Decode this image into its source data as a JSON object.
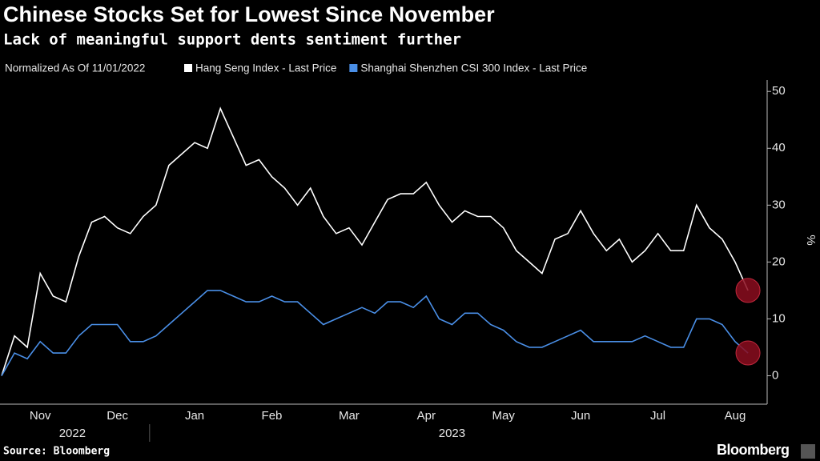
{
  "chart_data": {
    "type": "line",
    "title": "Chinese Stocks Set for Lowest Since November",
    "subtitle": "Lack of meaningful support dents sentiment further",
    "legend_note": "Normalized As Of 11/01/2022",
    "y_label": "%",
    "source": "Source: Bloomberg",
    "brand": "Bloomberg",
    "categories": [
      null,
      null,
      null,
      "Nov",
      null,
      null,
      null,
      null,
      null,
      "Dec",
      null,
      null,
      null,
      null,
      null,
      "Jan",
      null,
      null,
      null,
      null,
      null,
      "Feb",
      null,
      null,
      null,
      null,
      null,
      "Mar",
      null,
      null,
      null,
      null,
      null,
      "Apr",
      null,
      null,
      null,
      null,
      null,
      "May",
      null,
      null,
      null,
      null,
      null,
      "Jun",
      null,
      null,
      null,
      null,
      null,
      "Jul",
      null,
      null,
      null,
      null,
      null,
      "Aug",
      null
    ],
    "years": [
      {
        "label": "2022",
        "from": 0,
        "to": 11
      },
      {
        "label": "2023",
        "from": 12,
        "to": 58
      }
    ],
    "series": [
      {
        "name": "Hang Seng Index - Last Price",
        "color": "#ffffff",
        "values": [
          0,
          7,
          5,
          18,
          14,
          13,
          21,
          27,
          28,
          26,
          25,
          28,
          30,
          37,
          39,
          41,
          40,
          47,
          42,
          37,
          38,
          35,
          33,
          30,
          33,
          28,
          25,
          26,
          23,
          27,
          31,
          32,
          32,
          34,
          30,
          27,
          29,
          28,
          28,
          26,
          22,
          20,
          18,
          24,
          25,
          29,
          25,
          22,
          24,
          20,
          22,
          25,
          22,
          22,
          30,
          26,
          24,
          20,
          15
        ]
      },
      {
        "name": "Shanghai Shenzhen CSI 300 Index - Last Price",
        "color": "#4a8fe7",
        "values": [
          0,
          4,
          3,
          6,
          4,
          4,
          7,
          9,
          9,
          9,
          6,
          6,
          7,
          9,
          11,
          13,
          15,
          15,
          14,
          13,
          13,
          14,
          13,
          13,
          11,
          9,
          10,
          11,
          12,
          11,
          13,
          13,
          12,
          14,
          10,
          9,
          11,
          11,
          9,
          8,
          6,
          5,
          5,
          6,
          7,
          8,
          6,
          6,
          6,
          6,
          7,
          6,
          5,
          5,
          10,
          10,
          9,
          6,
          4
        ]
      }
    ],
    "highlight_color": "#8b0d1f",
    "ylim": [
      -5,
      52
    ],
    "yticks": [
      0,
      10,
      20,
      30,
      40,
      50
    ],
    "grid": false
  }
}
